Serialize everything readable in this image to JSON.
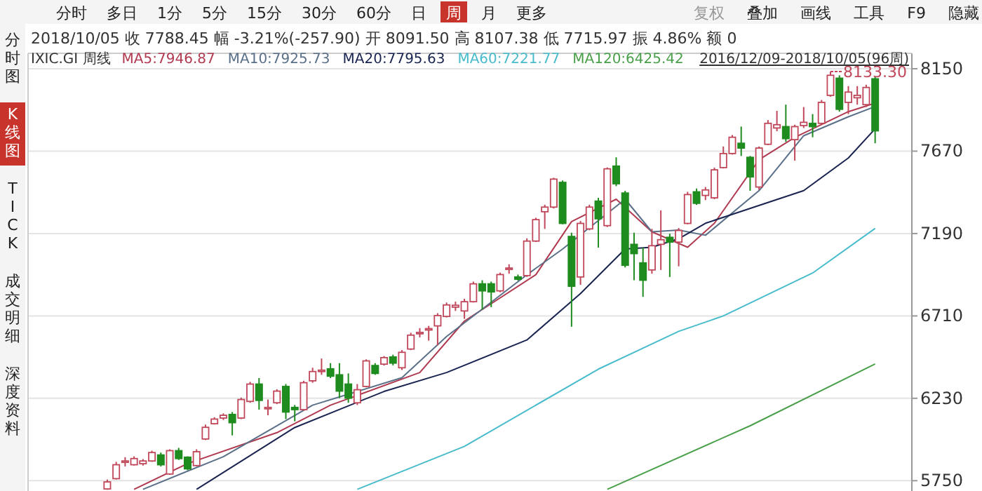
{
  "chart_data": {
    "type": "candlestick",
    "title": "2018/10/05 收 7788.45 幅 -3.21%(-257.90) 开 8091.50 高 8107.38 低 7715.97 振 4.86% 额 0",
    "subtitle": "IXIC.GI 周线",
    "categories": [
      null,
      null,
      null,
      null,
      null,
      null,
      null,
      null,
      null,
      null,
      null,
      null,
      null,
      null,
      null,
      null,
      null,
      null,
      null,
      null,
      null,
      null,
      null,
      null,
      null,
      null,
      null,
      null,
      null,
      null,
      null,
      null,
      null,
      null,
      null,
      null,
      null,
      null,
      null,
      null,
      null,
      null,
      null,
      null,
      null,
      null,
      null,
      null,
      null,
      null,
      null,
      null,
      null,
      null,
      null,
      null,
      null,
      null,
      null,
      null,
      null,
      null,
      null,
      null,
      null,
      null,
      null,
      null,
      null,
      null,
      null,
      null,
      null,
      null,
      null,
      null,
      null,
      null,
      null,
      null,
      null,
      null,
      null,
      null,
      null,
      null,
      null,
      null,
      null,
      null,
      null,
      null,
      null,
      null,
      null,
      null
    ],
    "ohlc": [
      null,
      null,
      null,
      null,
      null,
      null,
      null,
      null,
      null,
      [
        5702,
        5757,
        5697,
        5743
      ],
      [
        5762,
        5860,
        5757,
        5843
      ],
      [
        5860,
        5887,
        5833,
        5865
      ],
      [
        5843,
        5892,
        5838,
        5879
      ],
      [
        5849,
        5876,
        5838,
        5865
      ],
      [
        5865,
        5925,
        5860,
        5914
      ],
      [
        5900,
        5914,
        5833,
        5843
      ],
      [
        5789,
        5933,
        5784,
        5925
      ],
      [
        5925,
        5941,
        5871,
        5879
      ],
      [
        5887,
        5892,
        5811,
        5819
      ],
      [
        5838,
        5933,
        5833,
        5919
      ],
      [
        5993,
        6077,
        5987,
        6061
      ],
      [
        6082,
        6120,
        6077,
        6109
      ],
      [
        6115,
        6142,
        6104,
        6131
      ],
      [
        6136,
        6150,
        6014,
        6088
      ],
      [
        6115,
        6234,
        6109,
        6223
      ],
      [
        6212,
        6326,
        6204,
        6313
      ],
      [
        6313,
        6348,
        6164,
        6218
      ],
      [
        6169,
        6223,
        6131,
        6177
      ],
      [
        6204,
        6283,
        6196,
        6272
      ],
      [
        6299,
        6313,
        6109,
        6150
      ],
      [
        6177,
        6191,
        6096,
        6164
      ],
      [
        6164,
        6332,
        6158,
        6321
      ],
      [
        6332,
        6408,
        6321,
        6386
      ],
      [
        6386,
        6462,
        6367,
        6394
      ],
      [
        6402,
        6435,
        6348,
        6359
      ],
      [
        6367,
        6435,
        6231,
        6272
      ],
      [
        6313,
        6375,
        6204,
        6231
      ],
      [
        6204,
        6313,
        6191,
        6280
      ],
      [
        6299,
        6457,
        6294,
        6448
      ],
      [
        6421,
        6435,
        6367,
        6375
      ],
      [
        6429,
        6476,
        6421,
        6467
      ],
      [
        6471,
        6484,
        6422,
        6435
      ],
      [
        6408,
        6511,
        6395,
        6498
      ],
      [
        6517,
        6612,
        6511,
        6598
      ],
      [
        6609,
        6639,
        6585,
        6614
      ],
      [
        6631,
        6652,
        6566,
        6636
      ],
      [
        6652,
        6726,
        6538,
        6712
      ],
      [
        6707,
        6788,
        6701,
        6774
      ],
      [
        6761,
        6793,
        6739,
        6772
      ],
      [
        6739,
        6810,
        6693,
        6793
      ],
      [
        6793,
        6910,
        6788,
        6897
      ],
      [
        6897,
        6918,
        6747,
        6856
      ],
      [
        6897,
        6910,
        6761,
        6850
      ],
      [
        6856,
        6962,
        6848,
        6951
      ],
      [
        6983,
        7011,
        6956,
        6989
      ],
      [
        6937,
        6951,
        6916,
        6924
      ],
      [
        6945,
        7162,
        6937,
        7146
      ],
      [
        7146,
        7282,
        7141,
        7271
      ],
      [
        7317,
        7358,
        7217,
        7344
      ],
      [
        7344,
        7515,
        7336,
        7507
      ],
      [
        7488,
        7499,
        7244,
        7249
      ],
      [
        7173,
        7195,
        6647,
        6883
      ],
      [
        6937,
        7263,
        6891,
        7249
      ],
      [
        7217,
        7358,
        7209,
        7344
      ],
      [
        7379,
        7398,
        7108,
        7276
      ],
      [
        7236,
        7575,
        7228,
        7567
      ],
      [
        7583,
        7634,
        7466,
        7480
      ],
      [
        7426,
        7439,
        6992,
        7005
      ],
      [
        7127,
        7195,
        6918,
        7073
      ],
      [
        7019,
        7108,
        6821,
        6918
      ],
      [
        6978,
        7217,
        6956,
        7119
      ],
      [
        7127,
        7325,
        6978,
        7154
      ],
      [
        7168,
        7189,
        6937,
        7140
      ],
      [
        7140,
        7222,
        6999,
        7208
      ],
      [
        7249,
        7433,
        7244,
        7417
      ],
      [
        7433,
        7452,
        7357,
        7366
      ],
      [
        7412,
        7461,
        7385,
        7444
      ],
      [
        7398,
        7574,
        7390,
        7561
      ],
      [
        7574,
        7697,
        7569,
        7656
      ],
      [
        7656,
        7764,
        7650,
        7751
      ],
      [
        7716,
        7813,
        7642,
        7688
      ],
      [
        7634,
        7642,
        7439,
        7520
      ],
      [
        7461,
        7697,
        7444,
        7688
      ],
      [
        7710,
        7851,
        7705,
        7832
      ],
      [
        7805,
        7905,
        7786,
        7824
      ],
      [
        7813,
        7941,
        7724,
        7743
      ],
      [
        7737,
        7824,
        7615,
        7813
      ],
      [
        7819,
        7927,
        7805,
        7838
      ],
      [
        7832,
        7886,
        7751,
        7813
      ],
      [
        7832,
        7968,
        7824,
        7954
      ],
      [
        7995,
        8133.3,
        7987,
        8112
      ],
      [
        8095,
        8112,
        7900,
        7914
      ],
      [
        7954,
        8049,
        7886,
        8014
      ],
      [
        7981,
        8049,
        7941,
        7995
      ],
      [
        7941,
        8057,
        7927,
        8041
      ],
      [
        8091.5,
        8107.38,
        7715.97,
        7788.45
      ]
    ],
    "colors": [
      null,
      null,
      null,
      null,
      null,
      null,
      null,
      null,
      null,
      "#c0485a",
      "#c0485a",
      "#c0485a",
      "#c0485a",
      "#c0485a",
      "#c0485a",
      "#1e8c1e",
      "#c0485a",
      "#1e8c1e",
      "#1e8c1e",
      "#c0485a",
      "#c0485a",
      "#c0485a",
      "#c0485a",
      "#1e8c1e",
      "#c0485a",
      "#c0485a",
      "#1e8c1e",
      "#c0485a",
      "#c0485a",
      "#1e8c1e",
      "#1e8c1e",
      "#c0485a",
      "#c0485a",
      "#c0485a",
      "#1e8c1e",
      "#1e8c1e",
      "#1e8c1e",
      "#c0485a",
      "#c0485a",
      "#1e8c1e",
      "#c0485a",
      "#1e8c1e",
      "#c0485a",
      "#c0485a",
      "#c0485a",
      "#c0485a",
      "#c0485a",
      "#c0485a",
      "#c0485a",
      "#c0485a",
      "#c0485a",
      "#1e8c1e",
      "#1e8c1e",
      "#c0485a",
      "#c0485a",
      "#1e8c1e",
      "#c0485a",
      "#c0485a",
      "#c0485a",
      "#c0485a",
      "#1e8c1e",
      "#1e8c1e",
      "#c0485a",
      "#c0485a",
      "#1e8c1e",
      "#c0485a",
      "#1e8c1e",
      "#1e8c1e",
      "#1e8c1e",
      "#1e8c1e",
      "#c0485a",
      "#c0485a",
      "#1e8c1e",
      "#c0485a",
      "#c0485a",
      "#1e8c1e",
      "#c0485a",
      "#c0485a",
      "#c0485a",
      "#c0485a",
      "#1e8c1e",
      "#1e8c1e",
      "#c0485a",
      "#c0485a",
      "#c0485a",
      "#1e8c1e",
      "#c0485a",
      "#c0485a",
      "#1e8c1e",
      "#c0485a",
      "#c0485a",
      "#1e8c1e",
      "#c0485a",
      "#c0485a",
      "#c0485a",
      "#1e8c1e"
    ],
    "series": [
      {
        "type": "line",
        "name": "MA5:7946.87",
        "color": "#b03a50",
        "values": [
          null,
          null,
          null,
          null,
          null,
          null,
          null,
          null,
          null,
          null,
          null,
          null,
          5700,
          null,
          null,
          null,
          null,
          null,
          5850,
          null,
          null,
          null,
          null,
          null,
          null,
          null,
          null,
          null,
          6030,
          null,
          null,
          null,
          null,
          null,
          6190,
          null,
          null,
          null,
          null,
          null,
          null,
          null,
          null,
          null,
          6380,
          null,
          null,
          null,
          null,
          6680,
          null,
          null,
          null,
          null,
          null,
          null,
          null,
          6950,
          null,
          null,
          null,
          7260,
          null,
          null,
          null,
          null,
          7390,
          null,
          null,
          null,
          7200,
          null,
          null,
          null,
          7110,
          null,
          null,
          7250,
          null,
          null,
          null,
          null,
          7620,
          null,
          null,
          null,
          7750,
          null,
          null,
          null,
          null,
          null,
          7900,
          null,
          null,
          7950
        ]
      },
      {
        "type": "line",
        "name": "MA10:7925.73",
        "color": "#5a7088",
        "values": [
          null,
          null,
          null,
          null,
          null,
          null,
          null,
          null,
          null,
          null,
          null,
          null,
          null,
          5700,
          null,
          null,
          null,
          null,
          null,
          null,
          null,
          null,
          5890,
          null,
          null,
          null,
          null,
          null,
          null,
          null,
          null,
          null,
          6190,
          null,
          null,
          null,
          null,
          null,
          null,
          null,
          null,
          null,
          6350,
          null,
          null,
          null,
          null,
          6590,
          null,
          null,
          null,
          null,
          null,
          null,
          null,
          null,
          6950,
          null,
          null,
          null,
          7100,
          null,
          null,
          null,
          null,
          null,
          null,
          7390,
          null,
          null,
          7200,
          null,
          null,
          7210,
          null,
          null,
          7180,
          null,
          null,
          null,
          null,
          null,
          7440,
          null,
          null,
          null,
          null,
          7760,
          null,
          null,
          null,
          null,
          7870,
          null,
          null,
          7930
        ]
      },
      {
        "type": "line",
        "name": "MA20:7795.63",
        "color": "#1a2450",
        "values": [
          null,
          null,
          null,
          null,
          null,
          null,
          null,
          null,
          null,
          null,
          null,
          null,
          null,
          null,
          null,
          null,
          null,
          null,
          null,
          5700,
          null,
          null,
          null,
          null,
          null,
          null,
          null,
          null,
          null,
          null,
          6060,
          null,
          null,
          null,
          null,
          null,
          null,
          null,
          null,
          null,
          6270,
          null,
          null,
          null,
          null,
          null,
          null,
          6380,
          null,
          null,
          null,
          null,
          null,
          null,
          null,
          null,
          6570,
          null,
          null,
          null,
          null,
          null,
          6840,
          null,
          null,
          null,
          null,
          7100,
          null,
          null,
          7110,
          null,
          null,
          7160,
          null,
          null,
          7250,
          null,
          null,
          null,
          null,
          null,
          null,
          null,
          null,
          null,
          null,
          7440,
          null,
          null,
          null,
          null,
          7630,
          null,
          null,
          7800
        ]
      },
      {
        "type": "line",
        "name": "MA60:7221.77",
        "color": "#48bccc",
        "values": [
          null,
          null,
          null,
          null,
          null,
          null,
          null,
          null,
          null,
          null,
          null,
          null,
          null,
          null,
          null,
          null,
          null,
          null,
          null,
          null,
          null,
          null,
          null,
          null,
          null,
          null,
          null,
          null,
          null,
          null,
          null,
          null,
          null,
          null,
          null,
          null,
          null,
          5700,
          null,
          null,
          null,
          null,
          null,
          null,
          null,
          null,
          null,
          null,
          null,
          5950,
          null,
          null,
          null,
          null,
          null,
          null,
          null,
          null,
          null,
          null,
          null,
          null,
          null,
          null,
          6400,
          null,
          null,
          null,
          null,
          null,
          null,
          null,
          null,
          6620,
          null,
          null,
          null,
          null,
          6710,
          null,
          null,
          null,
          null,
          null,
          null,
          null,
          null,
          null,
          6960,
          null,
          null,
          null,
          null,
          null,
          null,
          7220
        ]
      },
      {
        "type": "line",
        "name": "MA120:6425.42",
        "color": "#4aa04a",
        "values": [
          null,
          null,
          null,
          null,
          null,
          null,
          null,
          null,
          null,
          null,
          null,
          null,
          null,
          null,
          null,
          null,
          null,
          null,
          null,
          null,
          null,
          null,
          null,
          null,
          null,
          null,
          null,
          null,
          null,
          null,
          null,
          null,
          null,
          null,
          null,
          null,
          null,
          null,
          null,
          null,
          null,
          null,
          null,
          null,
          null,
          null,
          null,
          null,
          null,
          null,
          null,
          null,
          null,
          null,
          null,
          null,
          null,
          null,
          null,
          null,
          null,
          null,
          null,
          null,
          null,
          5700,
          null,
          null,
          null,
          null,
          null,
          null,
          null,
          null,
          null,
          null,
          null,
          null,
          null,
          null,
          null,
          6070,
          null,
          null,
          null,
          null,
          null,
          null,
          null,
          null,
          null,
          null,
          null,
          null,
          null,
          6430
        ]
      }
    ],
    "ylim": [
      5690,
      8240
    ],
    "yticks": [
      5750,
      6230,
      6710,
      7190,
      7670,
      8150
    ],
    "grid": "y",
    "legend": "top",
    "tick_labels": "y",
    "annotations": [
      "2016/12/09-2018/10/05(96周)",
      {
        "text": "8133.30",
        "y": 8133.3
      },
      "分时",
      "多日",
      "1分",
      "5分",
      "15分",
      "30分",
      "60分",
      "日",
      "周",
      "月",
      "更多",
      "复权",
      "叠加",
      "画线",
      "工具",
      "F9",
      "隐藏",
      "分时图",
      "K线图",
      "TICK",
      "成交明细",
      "深度资料"
    ]
  }
}
